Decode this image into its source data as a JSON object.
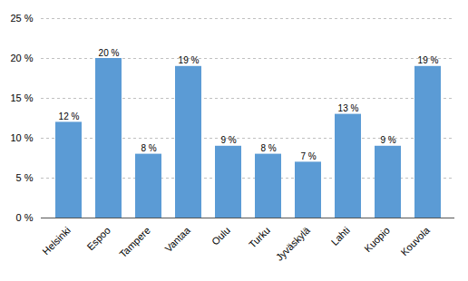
{
  "chart_data": {
    "type": "bar",
    "categories": [
      "Helsinki",
      "Espoo",
      "Tampere",
      "Vantaa",
      "Oulu",
      "Turku",
      "Jyväskylä",
      "Lahti",
      "Kuopio",
      "Kouvola"
    ],
    "values": [
      12,
      20,
      8,
      19,
      9,
      8,
      7,
      13,
      9,
      19
    ],
    "value_labels": [
      "12 %",
      "20 %",
      "8 %",
      "19 %",
      "9 %",
      "8 %",
      "7 %",
      "13 %",
      "9 %",
      "19 %"
    ],
    "data_labels": true,
    "color": "#5B9BD5",
    "ylim": [
      0,
      25
    ],
    "yticks": [
      {
        "value": 0,
        "label": "0 %"
      },
      {
        "value": 5,
        "label": "5 %"
      },
      {
        "value": 10,
        "label": "10 %"
      },
      {
        "value": 15,
        "label": "15 %"
      },
      {
        "value": 20,
        "label": "20 %"
      },
      {
        "value": 25,
        "label": "25 %"
      }
    ],
    "grid": true
  }
}
